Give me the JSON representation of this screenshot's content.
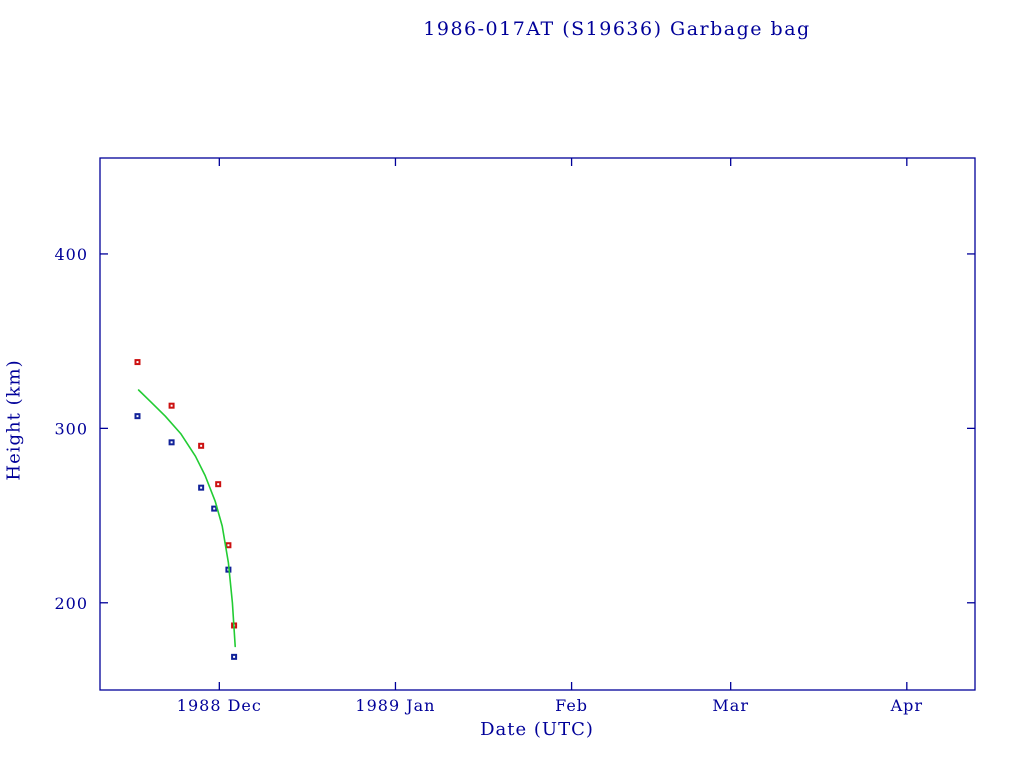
{
  "colors": {
    "axis": "#000099",
    "title": "#000099",
    "apogee": "#cc1111",
    "perigee": "#112299",
    "decay_curve": "#22cc33",
    "background": "#ffffff"
  },
  "chart_data": {
    "type": "scatter",
    "title": "1986-017AT (S19636) Garbage bag",
    "xlabel": "Date (UTC)",
    "ylabel": "Height (km)",
    "x_unit": "days since 1988 Dec 1",
    "xlim": [
      -21,
      133
    ],
    "ylim": [
      150,
      455
    ],
    "grid": false,
    "legend": "none",
    "x_ticks": [
      {
        "pos": 0,
        "label": "1988 Dec"
      },
      {
        "pos": 31,
        "label": "1989 Jan"
      },
      {
        "pos": 62,
        "label": "Feb"
      },
      {
        "pos": 90,
        "label": "Mar"
      },
      {
        "pos": 121,
        "label": "Apr"
      }
    ],
    "y_ticks": [
      {
        "pos": 200,
        "label": "200"
      },
      {
        "pos": 300,
        "label": "300"
      },
      {
        "pos": 400,
        "label": "400"
      }
    ],
    "series": [
      {
        "name": "apogee-height",
        "type": "scatter",
        "marker": "square",
        "color": "#cc1111",
        "x": [
          -14.4,
          -8.4,
          -3.2,
          -0.2,
          1.6,
          2.6
        ],
        "y": [
          338,
          313,
          290,
          268,
          233,
          187
        ]
      },
      {
        "name": "perigee-height",
        "type": "scatter",
        "marker": "square",
        "color": "#112299",
        "x": [
          -14.4,
          -8.4,
          -3.2,
          -0.9,
          1.6,
          2.6
        ],
        "y": [
          307,
          292,
          266,
          254,
          219,
          169
        ]
      },
      {
        "name": "decay-curve",
        "type": "line",
        "color": "#22cc33",
        "x": [
          -14.2,
          -12.0,
          -9.5,
          -6.8,
          -4.2,
          -2.5,
          -0.7,
          0.5,
          1.6,
          2.3,
          2.8
        ],
        "y": [
          322,
          315,
          307,
          297,
          284,
          273,
          258,
          244,
          223,
          200,
          175
        ]
      }
    ]
  }
}
